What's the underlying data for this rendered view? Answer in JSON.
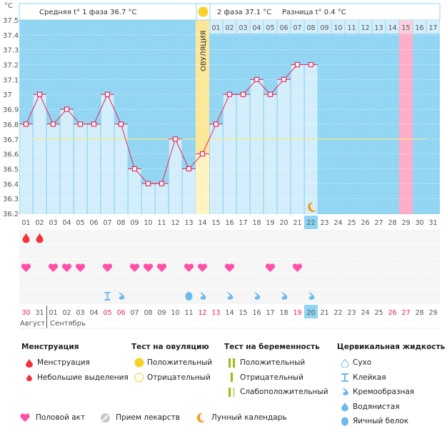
{
  "chart_data": {
    "type": "line",
    "title": "",
    "y_unit_label": "°C",
    "ylim": [
      36.2,
      37.5
    ],
    "y_ticks": [
      "37.5",
      "37.4",
      "37.3",
      "37.2",
      "37.1",
      "37",
      "36.9",
      "36.8",
      "36.7",
      "36.6",
      "36.5",
      "36.4",
      "36.3",
      "36.2"
    ],
    "x_day_labels": [
      "01",
      "02",
      "03",
      "04",
      "05",
      "06",
      "07",
      "08",
      "09",
      "10",
      "11",
      "12",
      "13",
      "14",
      "15",
      "16",
      "17",
      "18",
      "19",
      "20",
      "21",
      "22",
      "23",
      "24",
      "25",
      "26",
      "27",
      "28",
      "29",
      "30",
      "31"
    ],
    "post_ovulation_day_labels": [
      "01",
      "02",
      "03",
      "04",
      "05",
      "06",
      "07",
      "08",
      "09",
      "10",
      "11",
      "12",
      "13",
      "14",
      "15",
      "16",
      "17"
    ],
    "series": [
      {
        "name": "Базальная температура",
        "values": [
          36.8,
          37.0,
          36.8,
          36.9,
          36.8,
          36.8,
          37.0,
          36.8,
          36.5,
          36.4,
          36.4,
          36.7,
          36.5,
          36.6,
          36.8,
          37.0,
          37.0,
          37.1,
          37.0,
          37.1,
          37.2,
          37.2
        ]
      }
    ],
    "coverline": 36.7,
    "ovulation_day": 14,
    "ovulation_label": "ОВУЛЯЦИЯ",
    "expected_period_day": 29,
    "post_ovulation_highlight_day_label": "15",
    "current_day": 22,
    "moon_day": 22,
    "phase1_summary": "Средняя t° 1 фаза 36.7 °C",
    "phase2_summary": "2 фаза 37.1 °C",
    "difference_summary": "Разница t° 0.4 °C",
    "grid": true
  },
  "calendar": {
    "dates": [
      {
        "d": "30",
        "red": true
      },
      {
        "d": "31",
        "red": false
      },
      {
        "d": "01",
        "red": false
      },
      {
        "d": "02",
        "red": false
      },
      {
        "d": "03",
        "red": false
      },
      {
        "d": "04",
        "red": false
      },
      {
        "d": "05",
        "red": true
      },
      {
        "d": "06",
        "red": true
      },
      {
        "d": "07",
        "red": false
      },
      {
        "d": "08",
        "red": false
      },
      {
        "d": "09",
        "red": false
      },
      {
        "d": "10",
        "red": false
      },
      {
        "d": "11",
        "red": false
      },
      {
        "d": "12",
        "red": true
      },
      {
        "d": "13",
        "red": true
      },
      {
        "d": "14",
        "red": false
      },
      {
        "d": "15",
        "red": false
      },
      {
        "d": "16",
        "red": false
      },
      {
        "d": "17",
        "red": false
      },
      {
        "d": "18",
        "red": false
      },
      {
        "d": "19",
        "red": true
      },
      {
        "d": "20",
        "red": false
      },
      {
        "d": "21",
        "red": false
      },
      {
        "d": "22",
        "red": false
      },
      {
        "d": "23",
        "red": false
      },
      {
        "d": "24",
        "red": false
      },
      {
        "d": "25",
        "red": false
      },
      {
        "d": "26",
        "red": true
      },
      {
        "d": "27",
        "red": true
      },
      {
        "d": "28",
        "red": false
      },
      {
        "d": "29",
        "red": false
      }
    ],
    "today_index": 21,
    "month_left": "Август",
    "month_right": "Сентябрь",
    "month_split_index": 2,
    "menstruation_days": [
      1,
      2
    ],
    "intercourse_days": [
      1,
      3,
      4,
      5,
      7,
      9,
      10,
      11,
      13,
      14,
      16,
      19,
      21
    ],
    "cervical_fluid": [
      {
        "day": 7,
        "type": "sticky"
      },
      {
        "day": 8,
        "type": "creamy"
      },
      {
        "day": 13,
        "type": "egg-white"
      },
      {
        "day": 14,
        "type": "creamy"
      },
      {
        "day": 16,
        "type": "creamy"
      },
      {
        "day": 18,
        "type": "creamy"
      },
      {
        "day": 20,
        "type": "creamy"
      },
      {
        "day": 22,
        "type": "creamy"
      }
    ]
  },
  "legend": {
    "menstruation": {
      "title": "Менструация",
      "items": [
        "Менструация",
        "Небольшие выделения"
      ]
    },
    "ovulation_test": {
      "title": "Тест на овуляцию",
      "items": [
        "Положительный",
        "Отрицательный"
      ]
    },
    "pregnancy_test": {
      "title": "Тест на беременность",
      "items": [
        "Положительный",
        "Отрицательный",
        "Слабоположительный"
      ]
    },
    "cervical_fluid": {
      "title": "Цервикальная жидкость",
      "items": [
        "Сухо",
        "Клейкая",
        "Кремообразная",
        "Водянистая",
        "Яичный белок"
      ]
    },
    "bottom": [
      "Половой акт",
      "Прием лекарств",
      "Лунный календарь"
    ]
  },
  "colors": {
    "bg_sky": "#8fd4f2",
    "bar_fill": "#d4effb",
    "line": "#e8265a",
    "coverline": "#f5e88a",
    "ovulation_col": "#fde89a",
    "period_col": "#ffaec9",
    "heart": "#ff4fa8",
    "drop_red": "#f2333a",
    "fluid_blue": "#6cb9ee",
    "test_green": "#9dbb10"
  }
}
